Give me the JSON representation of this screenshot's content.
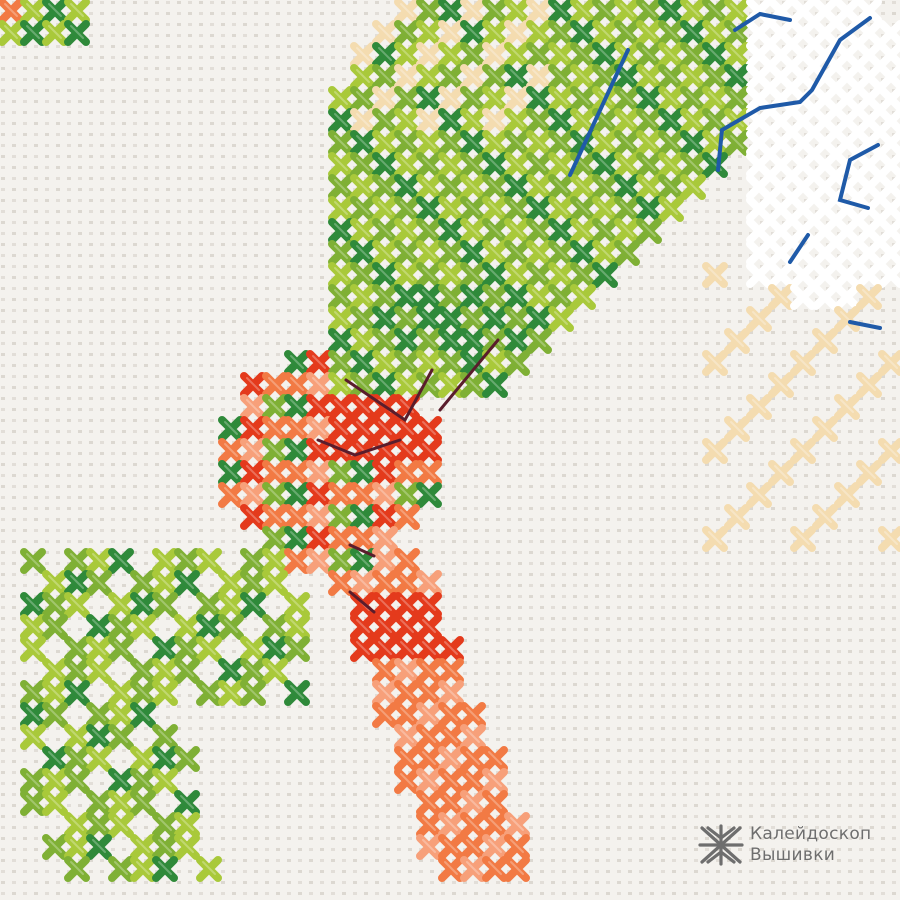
{
  "image": {
    "subject": "cross-stitch-embroidery",
    "colors": {
      "canvas": "#f4f2ee",
      "canvas_hole": "#dad6cf",
      "light_green": "#a9c93a",
      "mid_green": "#7fb035",
      "dark_green": "#2f8a3a",
      "cream": "#f4dcb0",
      "white_thread": "#ffffff",
      "red": "#e43a1c",
      "orange": "#f27a44",
      "salmon": "#f7a07a",
      "blue": "#1f5aa8",
      "maroon": "#5a1d2c",
      "watermark_gray": "#6e6e6e"
    }
  },
  "watermark": {
    "line1": "Калейдоскоп",
    "line2": "Вышивки",
    "icon": "snowflake-star-logo-icon"
  }
}
